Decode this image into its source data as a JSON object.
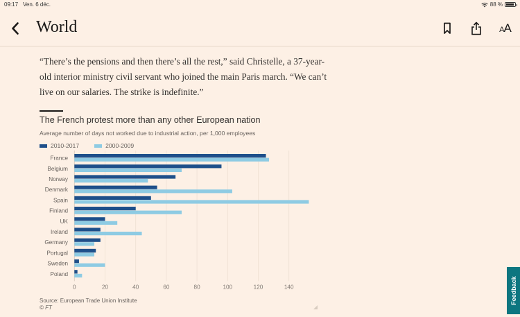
{
  "status_bar": {
    "time": "09:17",
    "date": "Ven. 6 déc.",
    "battery": "88 %",
    "icons": [
      "wifi-icon",
      "battery-icon"
    ]
  },
  "nav": {
    "back_icon": "chevron-left-icon",
    "title": "World",
    "actions": [
      {
        "name": "bookmark",
        "icon": "bookmark-icon"
      },
      {
        "name": "share",
        "icon": "share-icon"
      },
      {
        "name": "text-size",
        "icon": "text-size-icon",
        "small": "A",
        "large": "A"
      }
    ]
  },
  "article": {
    "paragraph": "“There’s the pensions and then there’s all the rest,” said Christelle, a 37-year-old interior ministry civil servant who joined the main Paris march. “We can’t live on our salaries. The strike is indefinite.”"
  },
  "chart_data": {
    "type": "bar",
    "orientation": "horizontal",
    "title": "The French protest more than any other European nation",
    "subtitle": "Average number of days not worked due to industrial action, per 1,000 employees",
    "xlabel": "",
    "ylabel": "",
    "categories": [
      "France",
      "Belgium",
      "Norway",
      "Denmark",
      "Spain",
      "Finland",
      "UK",
      "Ireland",
      "Germany",
      "Portugal",
      "Sweden",
      "Poland"
    ],
    "series": [
      {
        "name": "2010-2017",
        "color": "#1e4f8a",
        "values": [
          125,
          96,
          66,
          54,
          50,
          40,
          20,
          17,
          17,
          14,
          3,
          2
        ]
      },
      {
        "name": "2000-2009",
        "color": "#8ecbe3",
        "values": [
          127,
          70,
          48,
          103,
          153,
          70,
          28,
          44,
          13,
          13,
          20,
          5
        ]
      }
    ],
    "xlim": [
      0,
      158
    ],
    "xticks": [
      0,
      20,
      40,
      60,
      80,
      100,
      120,
      140
    ],
    "grid": true,
    "legend": "top-left",
    "source": "Source: European Trade Union Institute",
    "credit": "© FT"
  },
  "feedback": {
    "label": "Feedback"
  }
}
